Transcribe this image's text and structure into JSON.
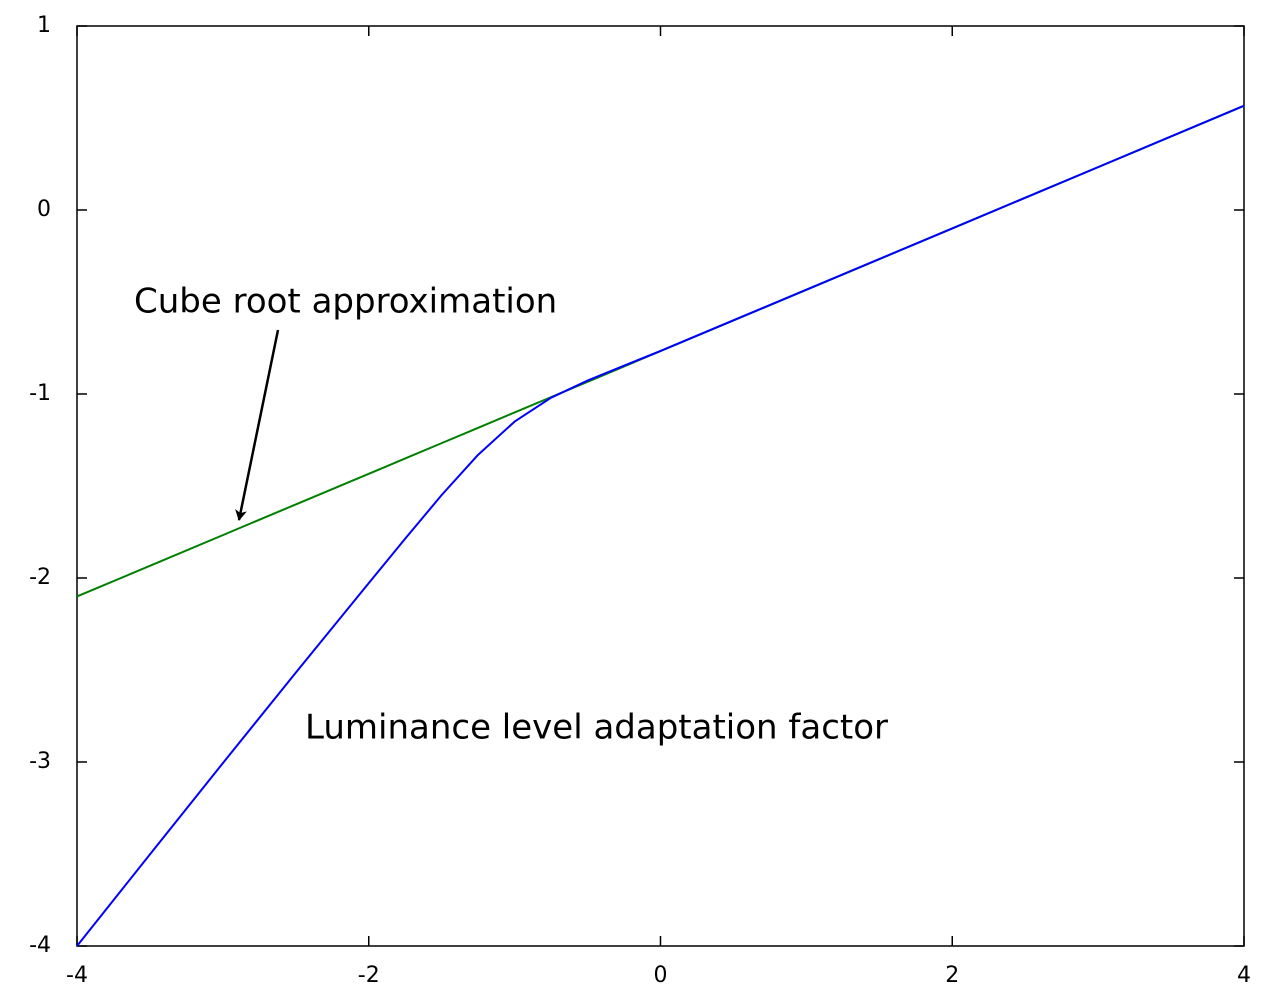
{
  "chart_data": {
    "type": "line",
    "x": [
      -4,
      -3.5,
      -3,
      -2.5,
      -2,
      -1.75,
      -1.5,
      -1.25,
      -1,
      -0.75,
      -0.5,
      -0.25,
      0,
      1,
      2,
      3,
      4
    ],
    "series": [
      {
        "color": "#008000",
        "values": [
          -2.1,
          -1.934,
          -1.767,
          -1.6,
          -1.434,
          -1.35,
          -1.267,
          -1.184,
          -1.1,
          -1.017,
          -0.934,
          -0.85,
          -0.767,
          -0.434,
          -0.1,
          0.233,
          0.566
        ]
      },
      {
        "color": "#0000ff",
        "values": [
          -4.0,
          -3.502,
          -3.006,
          -2.514,
          -2.028,
          -1.786,
          -1.549,
          -1.33,
          -1.15,
          -1.02,
          -0.927,
          -0.846,
          -0.766,
          -0.433,
          -0.1,
          0.233,
          0.567
        ]
      }
    ],
    "xlim": [
      -4,
      4
    ],
    "xticks": [
      -4,
      -2,
      0,
      2,
      4
    ],
    "ylim": [
      -4,
      1
    ],
    "yticks": [
      -4,
      -3,
      -2,
      -1,
      0,
      1
    ],
    "annotations": [
      "Cube root approximation",
      "Luminance level adaptation factor"
    ]
  }
}
